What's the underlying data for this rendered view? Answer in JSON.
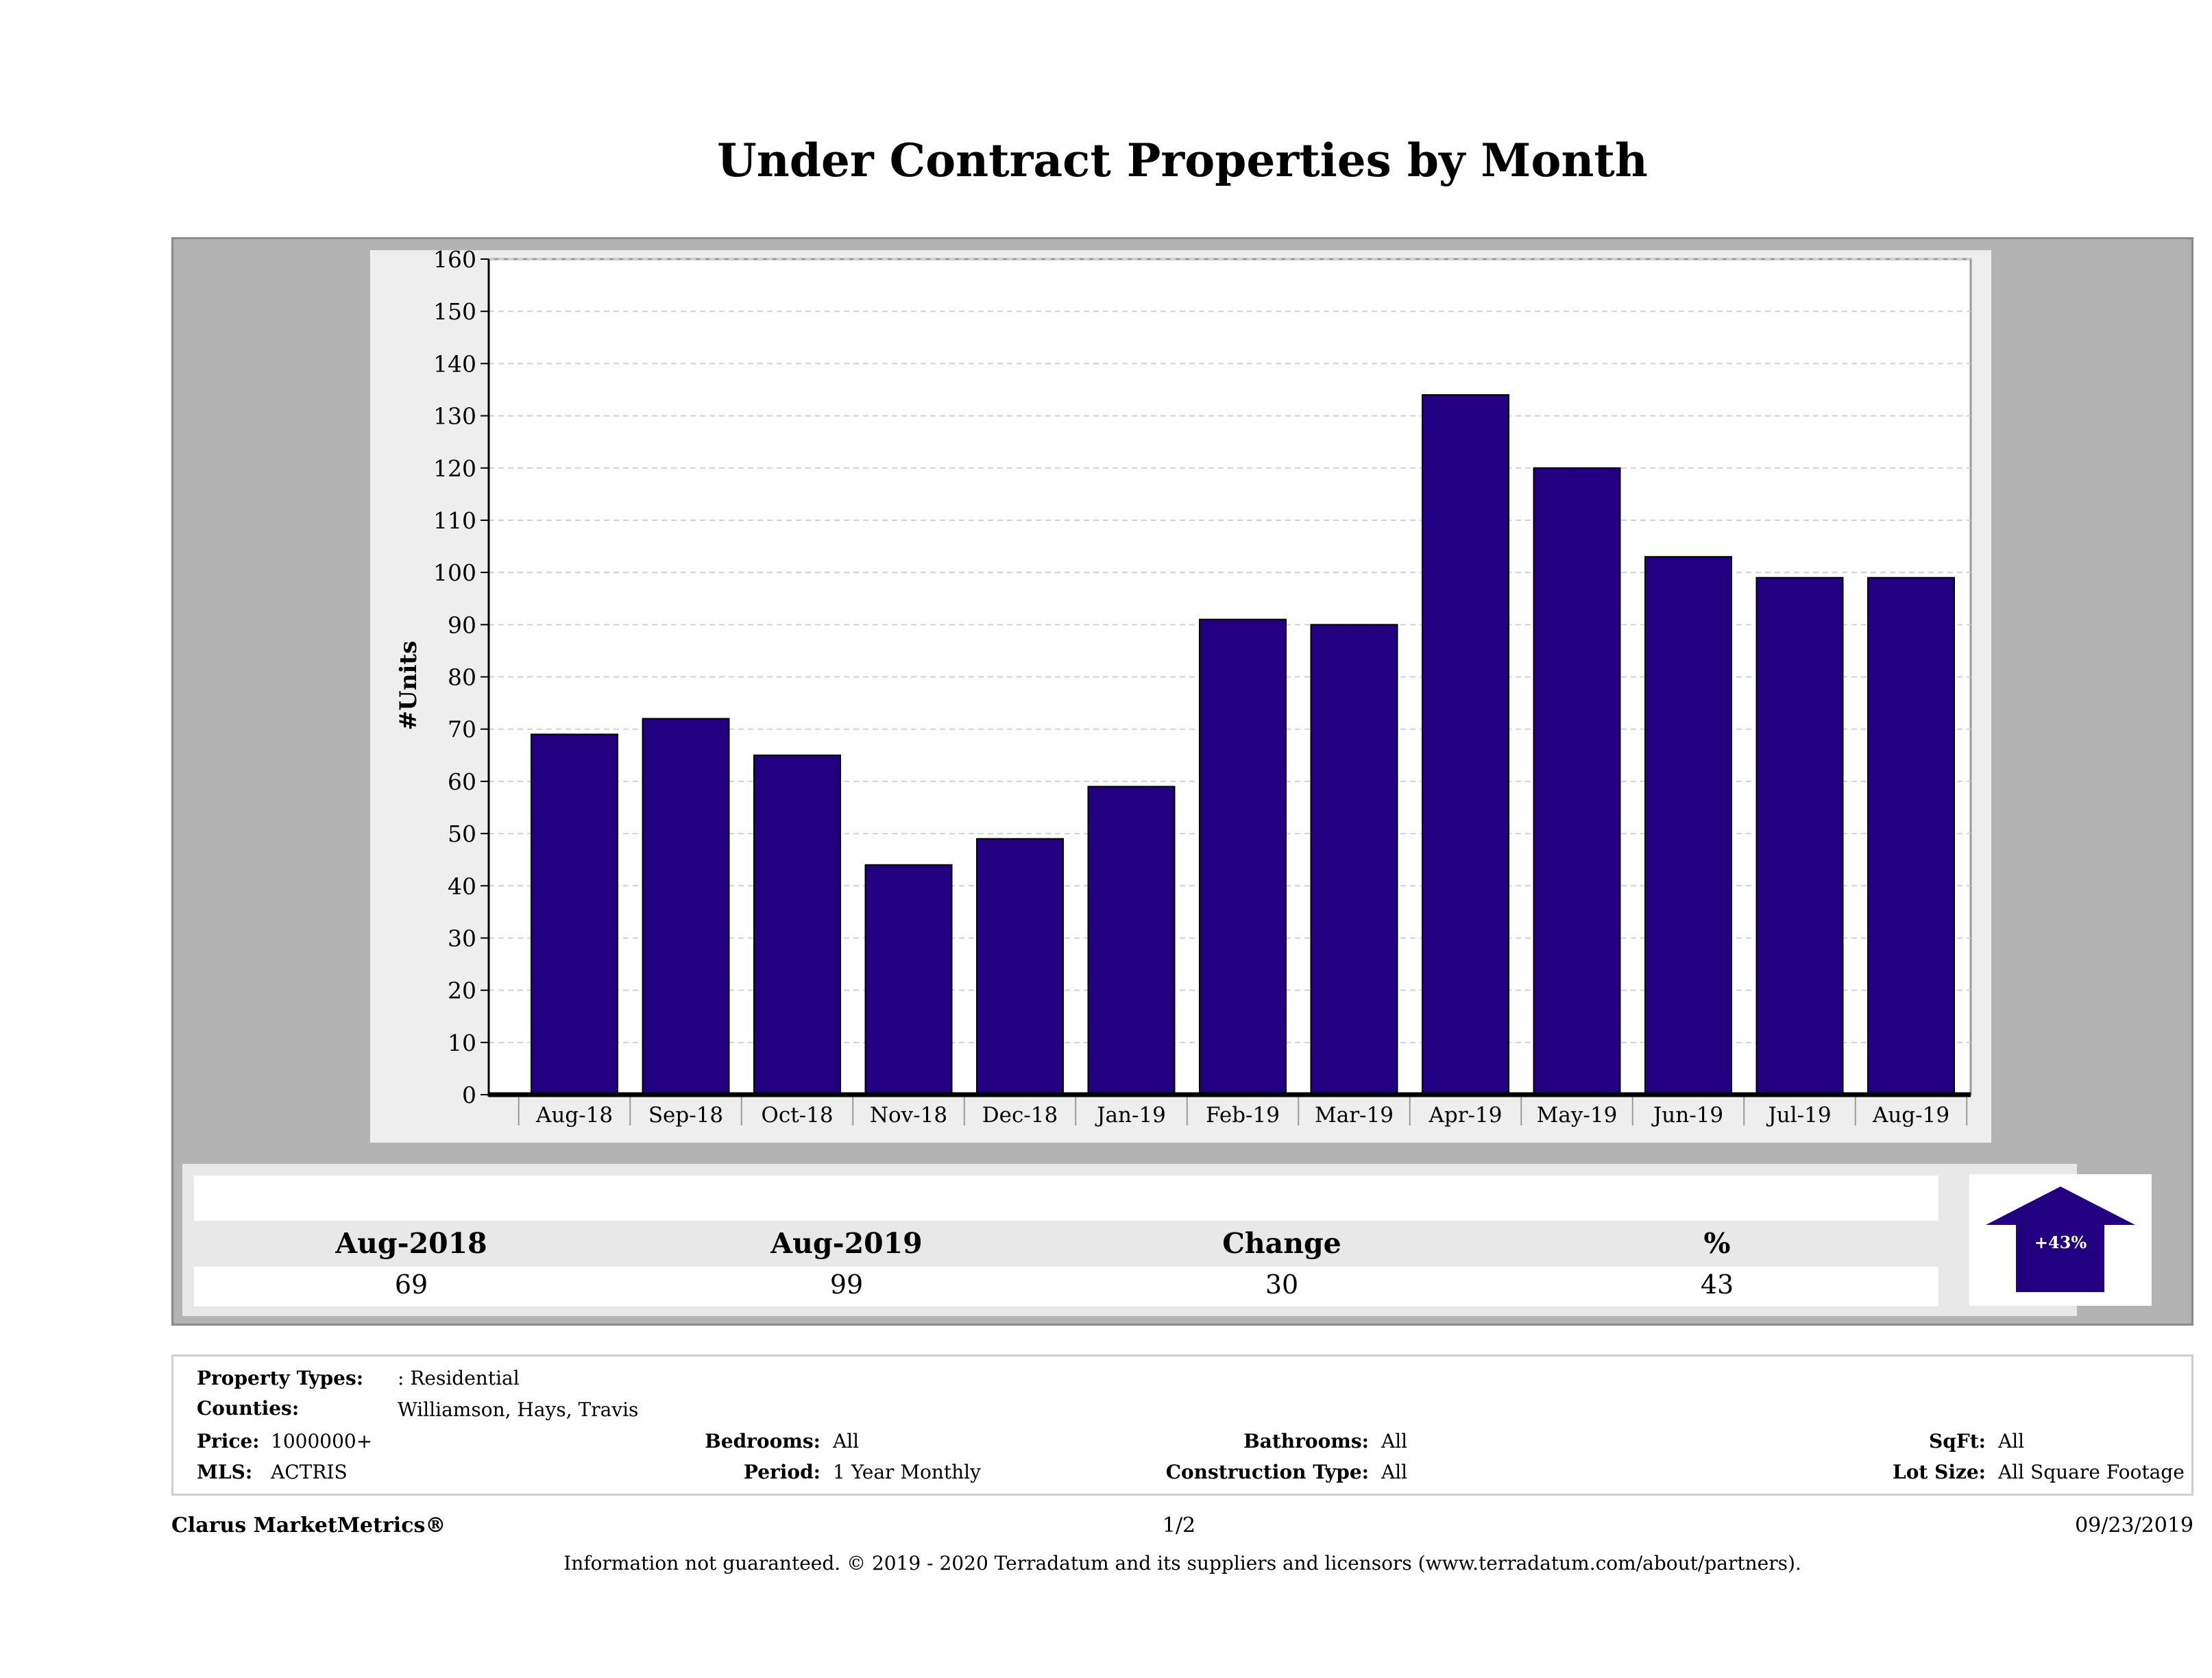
{
  "title": "Under Contract Properties by Month",
  "chart_data": {
    "type": "bar",
    "title": "Under Contract Properties by Month",
    "ylabel": "#Units",
    "xlabel": "",
    "categories": [
      "Aug-18",
      "Sep-18",
      "Oct-18",
      "Nov-18",
      "Dec-18",
      "Jan-19",
      "Feb-19",
      "Mar-19",
      "Apr-19",
      "May-19",
      "Jun-19",
      "Jul-19",
      "Aug-19"
    ],
    "values": [
      69,
      72,
      65,
      44,
      49,
      59,
      91,
      90,
      134,
      120,
      103,
      99,
      99
    ],
    "ylim": [
      0,
      160
    ],
    "yticks": [
      0,
      10,
      20,
      30,
      40,
      50,
      60,
      70,
      80,
      90,
      100,
      110,
      120,
      130,
      140,
      150,
      160
    ],
    "grid": true,
    "bar_color": "#22007f"
  },
  "summary": {
    "headers": [
      "Aug-2018",
      "Aug-2019",
      "Change",
      "%"
    ],
    "values": [
      "69",
      "99",
      "30",
      "43"
    ],
    "arrow_label": "+43%",
    "arrow_color": "#22007f"
  },
  "filters": {
    "property_types_label": "Property Types:",
    "property_types_value": ": Residential",
    "counties_label": "Counties:",
    "counties_value": "Williamson, Hays, Travis",
    "price_label": "Price:",
    "price_value": "1000000+",
    "mls_label": "MLS:",
    "mls_value": "ACTRIS",
    "bedrooms_label": "Bedrooms:",
    "bedrooms_value": "All",
    "period_label": "Period:",
    "period_value": "1 Year Monthly",
    "bathrooms_label": "Bathrooms:",
    "bathrooms_value": "All",
    "construction_label": "Construction Type:",
    "construction_value": "All",
    "sqft_label": "SqFt:",
    "sqft_value": "All",
    "lotsize_label": "Lot Size:",
    "lotsize_value": "All Square Footage"
  },
  "footer": {
    "brand": "Clarus MarketMetrics®",
    "page": "1/2",
    "date": "09/23/2019",
    "disclaimer": "Information not guaranteed. © 2019 - 2020 Terradatum and its suppliers and licensors (www.terradatum.com/about/partners)."
  }
}
